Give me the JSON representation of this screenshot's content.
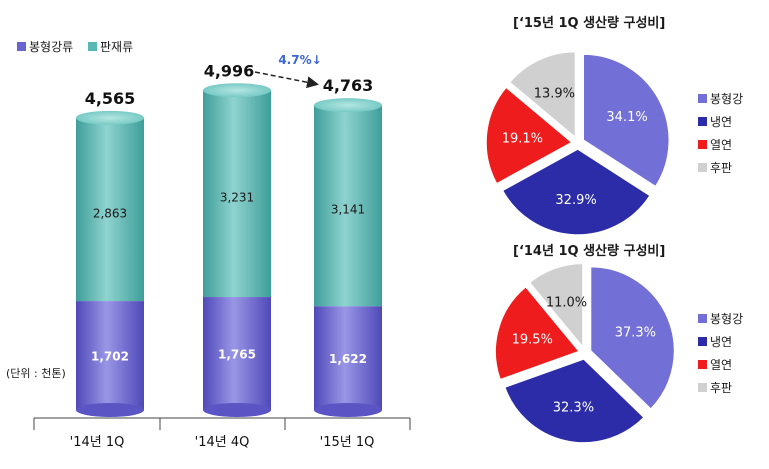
{
  "colors": {
    "bar_top": "#58b8b4",
    "bar_top_light": "#8fd3cf",
    "bar_bottom": "#6a64d0",
    "bar_bottom_light": "#9a96e6",
    "pie_rod": "#7270d6",
    "pie_cold": "#2c2ca8",
    "pie_hot": "#ee1c1c",
    "pie_plate": "#d0d0d0",
    "arrow_text": "#3b66d6"
  },
  "chart_data": [
    {
      "type": "bar",
      "stacked": true,
      "categories": [
        "'14년 1Q",
        "'14년 4Q",
        "'15년 1Q"
      ],
      "series": [
        {
          "name": "봉형강류",
          "values": [
            1702,
            1765,
            1622
          ],
          "labels": [
            "1,702",
            "1,765",
            "1,622"
          ]
        },
        {
          "name": "판재류",
          "values": [
            2863,
            3231,
            3141
          ],
          "labels": [
            "2,863",
            "3,231",
            "3,141"
          ]
        }
      ],
      "totals": [
        4565,
        4996,
        4763
      ],
      "total_labels": [
        "4,565",
        "4,996",
        "4,763"
      ],
      "unit_note": "(단위 : 천톤)",
      "change_annotation": "4.7%↓",
      "legend_position": "top-left",
      "ylim": [
        0,
        5000
      ]
    },
    {
      "type": "pie",
      "title": "[‘15년 1Q 생산량 구성비]",
      "slices": [
        {
          "name": "봉형강",
          "value": 34.1,
          "label": "34.1%"
        },
        {
          "name": "냉연",
          "value": 32.9,
          "label": "32.9%"
        },
        {
          "name": "열연",
          "value": 19.1,
          "label": "19.1%"
        },
        {
          "name": "후판",
          "value": 13.9,
          "label": "13.9%"
        }
      ],
      "legend_position": "right"
    },
    {
      "type": "pie",
      "title": "[‘14년 1Q 생산량 구성비]",
      "slices": [
        {
          "name": "봉형강",
          "value": 37.3,
          "label": "37.3%"
        },
        {
          "name": "냉연",
          "value": 32.3,
          "label": "32.3%"
        },
        {
          "name": "열연",
          "value": 19.5,
          "label": "19.5%"
        },
        {
          "name": "후판",
          "value": 11.0,
          "label": "11.0%"
        }
      ],
      "legend_position": "right"
    }
  ]
}
